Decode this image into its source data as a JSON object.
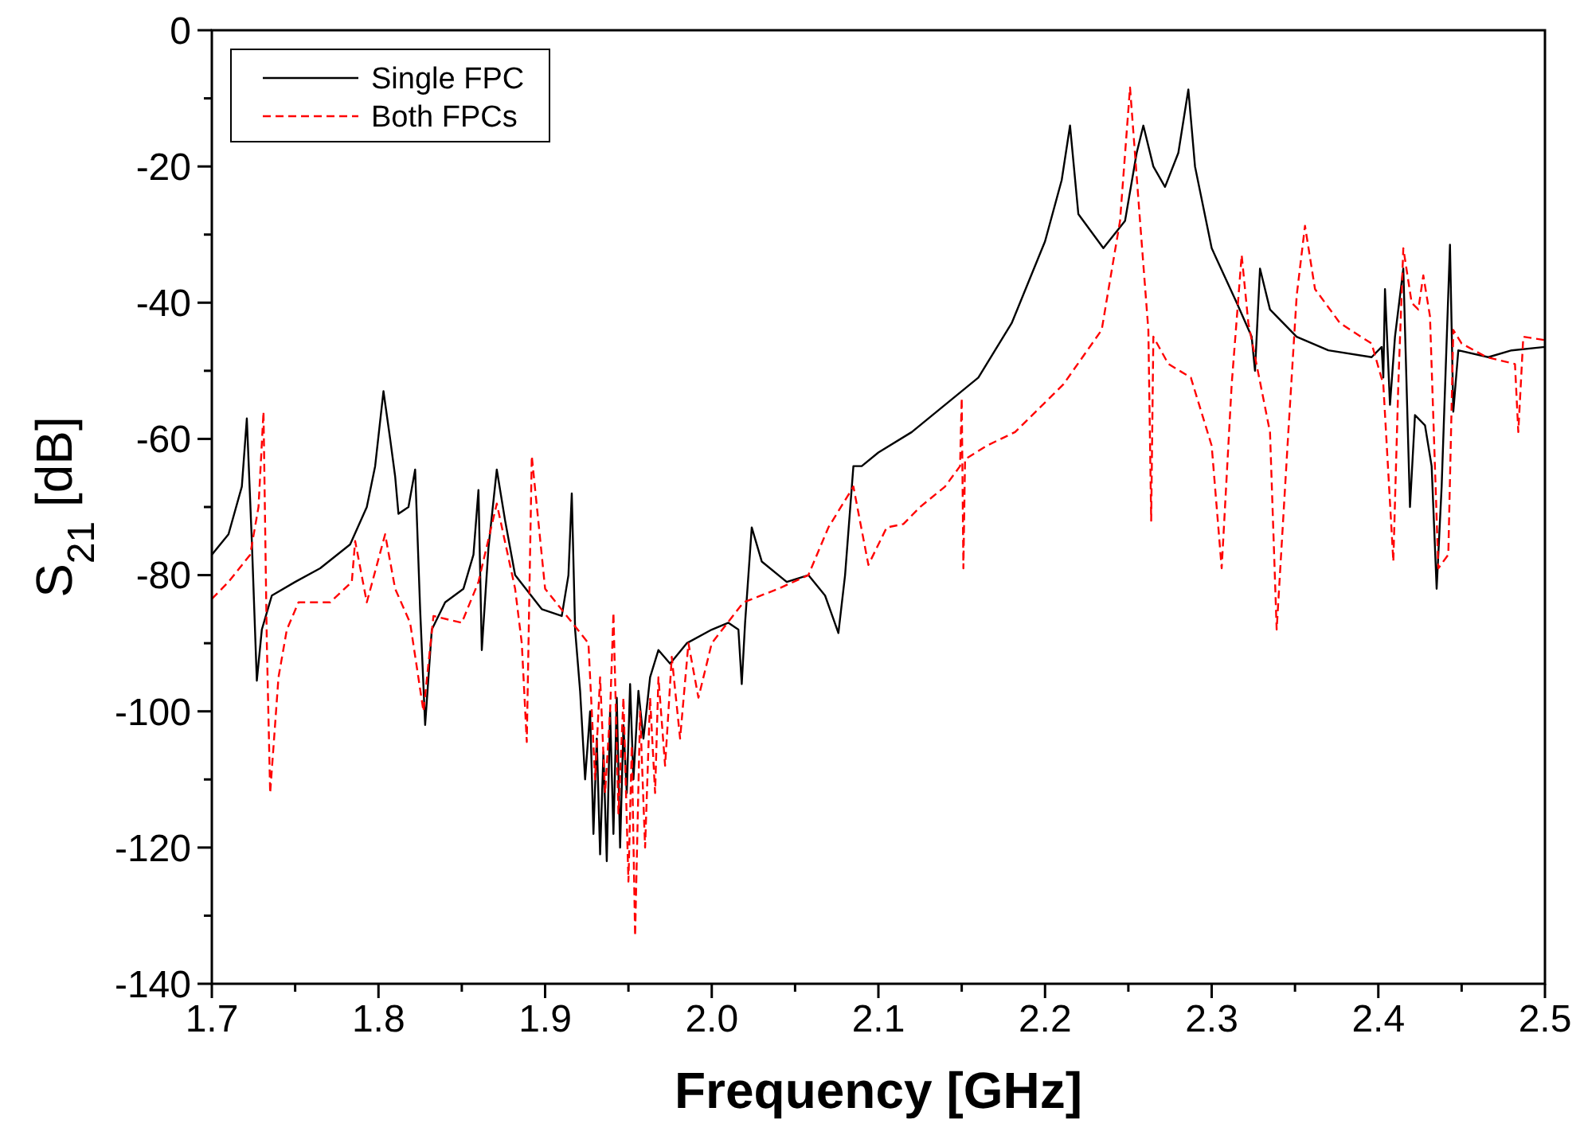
{
  "chart_data": {
    "type": "line",
    "xlabel": "Frequency [GHz]",
    "ylabel": "S$_{21}$ [dB]",
    "xlim": [
      1.7,
      2.5
    ],
    "ylim": [
      -140,
      0
    ],
    "xticks": [
      {
        "value": 1.7,
        "label": "1.7"
      },
      {
        "value": 1.75,
        "label": null
      },
      {
        "value": 1.8,
        "label": "1.8"
      },
      {
        "value": 1.85,
        "label": null
      },
      {
        "value": 1.9,
        "label": "1.9"
      },
      {
        "value": 1.95,
        "label": null
      },
      {
        "value": 2.0,
        "label": "2.0"
      },
      {
        "value": 2.05,
        "label": null
      },
      {
        "value": 2.1,
        "label": "2.1"
      },
      {
        "value": 2.15,
        "label": null
      },
      {
        "value": 2.2,
        "label": "2.2"
      },
      {
        "value": 2.25,
        "label": null
      },
      {
        "value": 2.3,
        "label": "2.3"
      },
      {
        "value": 2.35,
        "label": null
      },
      {
        "value": 2.4,
        "label": "2.4"
      },
      {
        "value": 2.45,
        "label": null
      },
      {
        "value": 2.5,
        "label": "2.5"
      }
    ],
    "yticks": [
      -140,
      {
        "value": -130,
        "label": null
      },
      -120,
      {
        "value": -110,
        "label": null
      },
      -100,
      {
        "value": -90,
        "label": null
      },
      -80,
      {
        "value": -70,
        "label": null
      },
      -60,
      {
        "value": -50,
        "label": null
      },
      -40,
      {
        "value": -30,
        "label": null
      },
      -20,
      {
        "value": -10,
        "label": null
      },
      0
    ],
    "grid": false,
    "legend": "top left",
    "series": [
      {
        "name": "Single FPC",
        "color": "#000000",
        "line_style": "solid",
        "x": [
          1.7,
          1.71,
          1.718,
          1.721,
          1.724,
          1.727,
          1.73,
          1.736,
          1.75,
          1.765,
          1.783,
          1.793,
          1.798,
          1.803,
          1.807,
          1.81,
          1.812,
          1.818,
          1.822,
          1.825,
          1.828,
          1.832,
          1.84,
          1.851,
          1.857,
          1.86,
          1.862,
          1.866,
          1.871,
          1.876,
          1.882,
          1.898,
          1.91,
          1.914,
          1.916,
          1.918,
          1.921,
          1.924,
          1.927,
          1.929,
          1.931,
          1.933,
          1.935,
          1.937,
          1.939,
          1.941,
          1.943,
          1.945,
          1.947,
          1.949,
          1.951,
          1.953,
          1.956,
          1.959,
          1.963,
          1.968,
          1.975,
          1.985,
          2.0,
          2.01,
          2.016,
          2.018,
          2.02,
          2.024,
          2.03,
          2.045,
          2.058,
          2.068,
          2.076,
          2.08,
          2.085,
          2.09,
          2.1,
          2.12,
          2.14,
          2.16,
          2.18,
          2.2,
          2.21,
          2.215,
          2.22,
          2.235,
          2.248,
          2.255,
          2.259,
          2.265,
          2.272,
          2.28,
          2.286,
          2.29,
          2.3,
          2.315,
          2.324,
          2.326,
          2.329,
          2.335,
          2.351,
          2.37,
          2.396,
          2.402,
          2.403,
          2.404,
          2.407,
          2.41,
          2.415,
          2.419,
          2.422,
          2.428,
          2.432,
          2.435,
          2.438,
          2.443,
          2.445,
          2.448,
          2.466,
          2.48,
          2.5
        ],
        "values": [
          -77,
          -74,
          -67,
          -57,
          -75,
          -95.5,
          -88,
          -83,
          -81,
          -79,
          -75.5,
          -70,
          -64,
          -53,
          -60,
          -65.5,
          -71,
          -70,
          -64.5,
          -85,
          -102,
          -88,
          -84,
          -82,
          -77,
          -67.5,
          -91,
          -76,
          -64.5,
          -72,
          -80,
          -85,
          -86,
          -80,
          -68,
          -88,
          -97,
          -110,
          -100,
          -118,
          -104,
          -121,
          -106,
          -122,
          -100,
          -118,
          -98,
          -120,
          -102,
          -112,
          -96,
          -110,
          -97,
          -104,
          -95,
          -91,
          -93,
          -90,
          -88,
          -87,
          -88,
          -96,
          -87,
          -73,
          -78,
          -81,
          -80,
          -83,
          -88.5,
          -80,
          -64,
          -64,
          -62,
          -59,
          -55,
          -51,
          -43,
          -31,
          -22,
          -14,
          -27,
          -32,
          -28,
          -18,
          -14,
          -20,
          -23,
          -18,
          -8.7,
          -20,
          -32,
          -40,
          -45,
          -50,
          -35,
          -41,
          -45,
          -47,
          -48,
          -46.5,
          -51,
          -38,
          -55,
          -45,
          -35,
          -70,
          -56.5,
          -58,
          -64,
          -82,
          -67,
          -31.5,
          -56,
          -47,
          -48,
          -47,
          -46.5
        ]
      },
      {
        "name": "Both FPCs",
        "color": "#ff0000",
        "line_style": "dashed",
        "x": [
          1.7,
          1.71,
          1.723,
          1.728,
          1.731,
          1.733,
          1.735,
          1.74,
          1.745,
          1.752,
          1.771,
          1.784,
          1.786,
          1.793,
          1.804,
          1.81,
          1.819,
          1.827,
          1.833,
          1.85,
          1.86,
          1.871,
          1.882,
          1.886,
          1.889,
          1.892,
          1.9,
          1.913,
          1.926,
          1.93,
          1.933,
          1.936,
          1.939,
          1.941,
          1.944,
          1.947,
          1.95,
          1.952,
          1.954,
          1.957,
          1.96,
          1.963,
          1.966,
          1.968,
          1.972,
          1.976,
          1.981,
          1.986,
          1.992,
          2.0,
          2.019,
          2.04,
          2.058,
          2.07,
          2.085,
          2.094,
          2.105,
          2.115,
          2.125,
          2.14,
          2.149,
          2.15,
          2.151,
          2.152,
          2.165,
          2.182,
          2.211,
          2.234,
          2.245,
          2.251,
          2.257,
          2.262,
          2.2637,
          2.265,
          2.274,
          2.2875,
          2.3,
          2.306,
          2.312,
          2.318,
          2.322,
          2.335,
          2.339,
          2.346,
          2.351,
          2.356,
          2.362,
          2.377,
          2.396,
          2.403,
          2.409,
          2.412,
          2.415,
          2.42,
          2.424,
          2.427,
          2.431,
          2.436,
          2.442,
          2.445,
          2.45,
          2.465,
          2.482,
          2.484,
          2.487,
          2.5
        ],
        "values": [
          -83.5,
          -81,
          -77,
          -70,
          -56,
          -90,
          -112,
          -95,
          -88,
          -84,
          -84,
          -81,
          -75,
          -84,
          -74,
          -82,
          -87,
          -100,
          -86,
          -87,
          -81,
          -69.5,
          -82,
          -90,
          -104.5,
          -62.5,
          -82,
          -86,
          -90,
          -110,
          -95,
          -112,
          -100,
          -85.5,
          -115,
          -98,
          -125,
          -105,
          -133,
          -100,
          -120,
          -98,
          -112,
          -95,
          -108,
          -92,
          -104,
          -90,
          -98,
          -90,
          -84,
          -82,
          -80,
          -73,
          -67,
          -78.5,
          -73,
          -72.5,
          -70,
          -67,
          -64,
          -54,
          -79,
          -63,
          -61,
          -59,
          -52,
          -44,
          -28,
          -8.4,
          -28,
          -44,
          -72,
          -45,
          -49,
          -51,
          -61,
          -79,
          -52,
          -33,
          -43,
          -59,
          -88,
          -59,
          -39,
          -28.7,
          -38,
          -43,
          -46,
          -52,
          -78,
          -52,
          -32,
          -40,
          -41,
          -36,
          -42,
          -79,
          -77,
          -44,
          -46,
          -48,
          -49,
          -59,
          -45,
          -45.5
        ]
      }
    ]
  }
}
